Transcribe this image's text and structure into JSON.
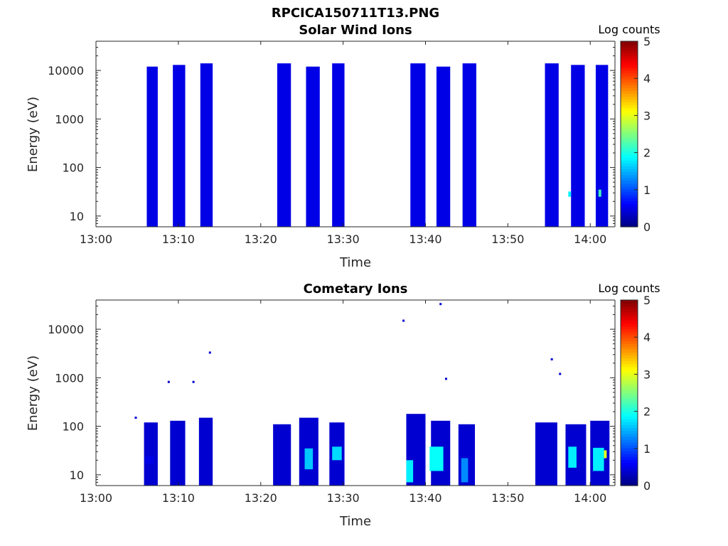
{
  "figure_title": "RPCICA150711T13.PNG",
  "colorbar": {
    "label": "Log counts",
    "ticks": [
      "0",
      "1",
      "2",
      "3",
      "4",
      "5"
    ],
    "range": [
      0,
      5
    ],
    "colormap": "jet"
  },
  "chart_data": [
    {
      "type": "heatmap",
      "title": "Solar Wind Ions",
      "xlabel": "Time",
      "ylabel": "Energy (eV)",
      "x_scale": "time",
      "y_scale": "log",
      "xlim": [
        "13:00",
        "14:03"
      ],
      "ylim": [
        6,
        40000
      ],
      "x_tick_labels": [
        "13:00",
        "13:10",
        "13:20",
        "13:30",
        "13:40",
        "13:50",
        "14:00"
      ],
      "y_tick_labels": [
        "10",
        "100",
        "1000",
        "10000"
      ],
      "blocks": [
        {
          "start": "13:06:10",
          "end": "13:07:30",
          "e_min": 6,
          "e_max": 12000,
          "level": 0.5
        },
        {
          "start": "13:09:20",
          "end": "13:10:50",
          "e_min": 6,
          "e_max": 13000,
          "level": 0.5
        },
        {
          "start": "13:12:40",
          "end": "13:14:10",
          "e_min": 6,
          "e_max": 14000,
          "level": 0.5
        },
        {
          "start": "13:22:00",
          "end": "13:23:40",
          "e_min": 6,
          "e_max": 14000,
          "level": 0.5
        },
        {
          "start": "13:25:30",
          "end": "13:27:10",
          "e_min": 6,
          "e_max": 12000,
          "level": 0.5
        },
        {
          "start": "13:28:40",
          "end": "13:30:10",
          "e_min": 6,
          "e_max": 14000,
          "level": 0.5
        },
        {
          "start": "13:38:10",
          "end": "13:40:00",
          "e_min": 6,
          "e_max": 14000,
          "level": 0.5
        },
        {
          "start": "13:41:20",
          "end": "13:43:00",
          "e_min": 6,
          "e_max": 12000,
          "level": 0.5
        },
        {
          "start": "13:44:30",
          "end": "13:46:10",
          "e_min": 6,
          "e_max": 14000,
          "level": 0.5
        },
        {
          "start": "13:54:30",
          "end": "13:56:10",
          "e_min": 6,
          "e_max": 14000,
          "level": 0.5
        },
        {
          "start": "13:57:40",
          "end": "13:59:20",
          "e_min": 6,
          "e_max": 13000,
          "level": 0.5
        },
        {
          "start": "14:00:40",
          "end": "14:02:10",
          "e_min": 6,
          "e_max": 13000,
          "level": 0.5
        }
      ],
      "patches": [
        {
          "start": "13:57:20",
          "end": "13:57:40",
          "e_min": 25,
          "e_max": 32,
          "level": 1.8
        },
        {
          "start": "14:01:00",
          "end": "14:01:20",
          "e_min": 25,
          "e_max": 35,
          "level": 2.2
        }
      ]
    },
    {
      "type": "heatmap",
      "title": "Cometary Ions",
      "xlabel": "Time",
      "ylabel": "Energy (eV)",
      "x_scale": "time",
      "y_scale": "log",
      "xlim": [
        "13:00",
        "14:03"
      ],
      "ylim": [
        6,
        40000
      ],
      "x_tick_labels": [
        "13:00",
        "13:10",
        "13:20",
        "13:30",
        "13:40",
        "13:50",
        "14:00"
      ],
      "y_tick_labels": [
        "10",
        "100",
        "1000",
        "10000"
      ],
      "blocks": [
        {
          "start": "13:05:50",
          "end": "13:07:30",
          "e_min": 6,
          "e_max": 120,
          "level": 0.4
        },
        {
          "start": "13:09:00",
          "end": "13:10:50",
          "e_min": 6,
          "e_max": 130,
          "level": 0.4
        },
        {
          "start": "13:12:30",
          "end": "13:14:10",
          "e_min": 6,
          "e_max": 150,
          "level": 0.4
        },
        {
          "start": "13:21:30",
          "end": "13:23:40",
          "e_min": 6,
          "e_max": 110,
          "level": 0.4
        },
        {
          "start": "13:24:40",
          "end": "13:27:00",
          "e_min": 6,
          "e_max": 150,
          "level": 0.4
        },
        {
          "start": "13:28:20",
          "end": "13:30:10",
          "e_min": 6,
          "e_max": 120,
          "level": 0.4
        },
        {
          "start": "13:37:40",
          "end": "13:40:00",
          "e_min": 6,
          "e_max": 180,
          "level": 0.4
        },
        {
          "start": "13:40:40",
          "end": "13:43:00",
          "e_min": 6,
          "e_max": 130,
          "level": 0.4
        },
        {
          "start": "13:44:00",
          "end": "13:46:00",
          "e_min": 6,
          "e_max": 110,
          "level": 0.4
        },
        {
          "start": "13:53:20",
          "end": "13:56:00",
          "e_min": 6,
          "e_max": 120,
          "level": 0.4
        },
        {
          "start": "13:57:00",
          "end": "13:59:30",
          "e_min": 6,
          "e_max": 110,
          "level": 0.4
        },
        {
          "start": "14:00:00",
          "end": "14:02:20",
          "e_min": 6,
          "e_max": 130,
          "level": 0.4
        }
      ],
      "patches": [
        {
          "start": "13:06:00",
          "end": "13:07:00",
          "e_min": 17,
          "e_max": 24,
          "level": 0.5
        },
        {
          "start": "13:25:20",
          "end": "13:26:20",
          "e_min": 13,
          "e_max": 35,
          "level": 1.6
        },
        {
          "start": "13:28:40",
          "end": "13:29:50",
          "e_min": 20,
          "e_max": 38,
          "level": 1.7
        },
        {
          "start": "13:37:40",
          "end": "13:38:30",
          "e_min": 7,
          "e_max": 20,
          "level": 1.8
        },
        {
          "start": "13:40:30",
          "end": "13:42:10",
          "e_min": 12,
          "e_max": 38,
          "level": 1.9
        },
        {
          "start": "13:44:20",
          "end": "13:45:10",
          "e_min": 7,
          "e_max": 22,
          "level": 1.3
        },
        {
          "start": "13:57:20",
          "end": "13:58:20",
          "e_min": 14,
          "e_max": 38,
          "level": 1.8
        },
        {
          "start": "14:00:20",
          "end": "14:01:40",
          "e_min": 12,
          "e_max": 36,
          "level": 1.8
        },
        {
          "start": "14:01:40",
          "end": "14:02:00",
          "e_min": 22,
          "e_max": 32,
          "level": 3.0
        }
      ],
      "points": [
        {
          "t": "13:04:50",
          "e": 150,
          "level": 0.4
        },
        {
          "t": "13:08:50",
          "e": 820,
          "level": 0.4
        },
        {
          "t": "13:11:50",
          "e": 820,
          "level": 0.4
        },
        {
          "t": "13:13:50",
          "e": 3300,
          "level": 0.4
        },
        {
          "t": "13:37:20",
          "e": 15000,
          "level": 0.4
        },
        {
          "t": "13:41:50",
          "e": 33000,
          "level": 0.4
        },
        {
          "t": "13:42:30",
          "e": 950,
          "level": 0.4
        },
        {
          "t": "13:55:20",
          "e": 2400,
          "level": 0.4
        },
        {
          "t": "13:56:20",
          "e": 1200,
          "level": 0.4
        }
      ]
    }
  ]
}
